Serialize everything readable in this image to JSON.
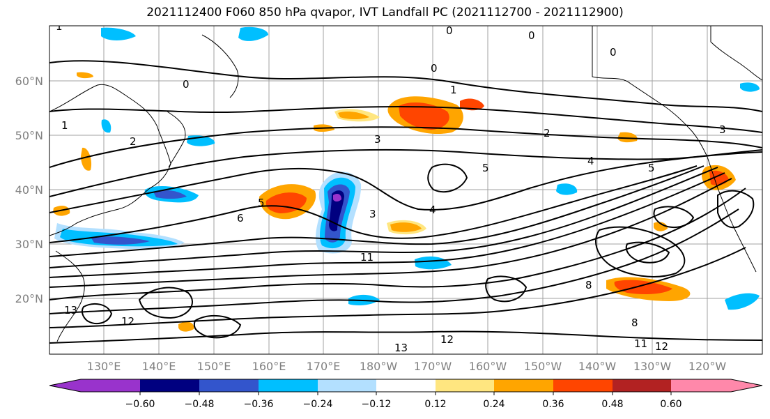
{
  "title": "2021112400 F060 850 hPa qvapor, IVT Landfall PC (2021112700 - 2021112900)",
  "map": {
    "latitude_labels": [
      "60°N",
      "50°N",
      "40°N",
      "30°N",
      "20°N"
    ],
    "longitude_labels": [
      "130°E",
      "140°E",
      "150°E",
      "160°E",
      "170°E",
      "180°W",
      "170°W",
      "160°W",
      "150°W",
      "140°W",
      "130°W",
      "120°W"
    ],
    "contour_labels": [
      "0",
      "0",
      "0",
      "0",
      "0",
      "1",
      "1",
      "1",
      "2",
      "2",
      "3",
      "3",
      "3",
      "4",
      "4",
      "5",
      "5",
      "5",
      "6",
      "8",
      "8",
      "11",
      "11",
      "12",
      "12",
      "12",
      "13",
      "13"
    ]
  },
  "colorbar": {
    "tick_labels": [
      "−0.60",
      "−0.48",
      "−0.36",
      "−0.24",
      "−0.12",
      "0.12",
      "0.24",
      "0.36",
      "0.48",
      "0.60"
    ],
    "colors": [
      "#9933cc",
      "#000080",
      "#3355cc",
      "#00bfff",
      "#b3e0ff",
      "#ffffff",
      "#ffe680",
      "#ffa500",
      "#ff4500",
      "#b22222",
      "#ff88aa"
    ]
  }
}
